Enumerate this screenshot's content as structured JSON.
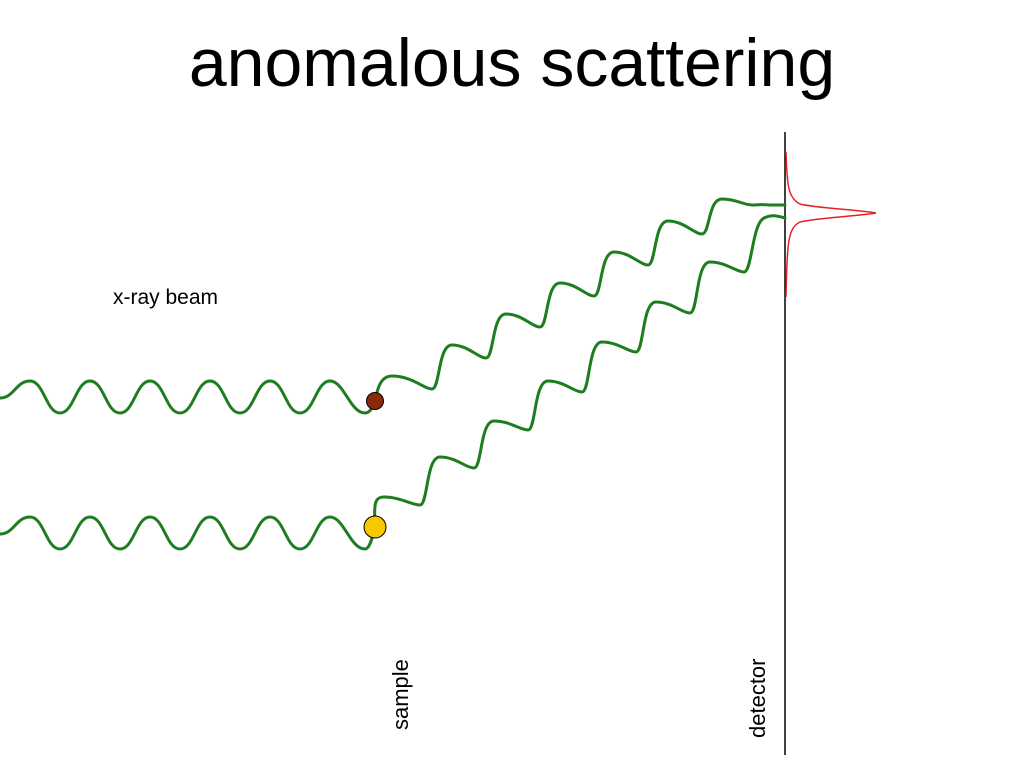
{
  "title": "anomalous scattering",
  "labels": {
    "beam": "x-ray beam",
    "sample": "sample",
    "detector": "detector"
  },
  "colors": {
    "wave": "#1e7d1e",
    "atom_top": "#8b2a0a",
    "atom_bottom": "#f5c800",
    "detector_line": "#000000",
    "intensity_peak": "#e8202a"
  }
}
